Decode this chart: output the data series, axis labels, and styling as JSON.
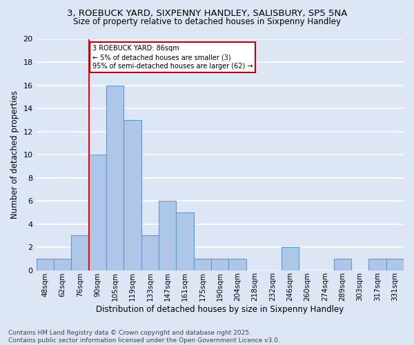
{
  "title1": "3, ROEBUCK YARD, SIXPENNY HANDLEY, SALISBURY, SP5 5NA",
  "title2": "Size of property relative to detached houses in Sixpenny Handley",
  "xlabel": "Distribution of detached houses by size in Sixpenny Handley",
  "ylabel": "Number of detached properties",
  "categories": [
    "48sqm",
    "62sqm",
    "76sqm",
    "90sqm",
    "105sqm",
    "119sqm",
    "133sqm",
    "147sqm",
    "161sqm",
    "175sqm",
    "190sqm",
    "204sqm",
    "218sqm",
    "232sqm",
    "246sqm",
    "260sqm",
    "274sqm",
    "289sqm",
    "303sqm",
    "317sqm",
    "331sqm"
  ],
  "values": [
    1,
    1,
    3,
    10,
    16,
    13,
    3,
    6,
    5,
    1,
    1,
    1,
    0,
    0,
    2,
    0,
    0,
    1,
    0,
    1,
    1
  ],
  "bar_color": "#aec6e8",
  "bar_edge_color": "#5b9bd5",
  "red_line_index": 2.5,
  "annotation_text": "3 ROEBUCK YARD: 86sqm\n← 5% of detached houses are smaller (3)\n95% of semi-detached houses are larger (62) →",
  "annotation_box_color": "#ffffff",
  "annotation_box_edge": "#cc0000",
  "footer": "Contains HM Land Registry data © Crown copyright and database right 2025.\nContains public sector information licensed under the Open Government Licence v3.0.",
  "ylim": [
    0,
    20
  ],
  "yticks": [
    0,
    2,
    4,
    6,
    8,
    10,
    12,
    14,
    16,
    18,
    20
  ],
  "background_color": "#dce6f5",
  "grid_color": "#ffffff",
  "title_fontsize": 9.5,
  "subtitle_fontsize": 8.5,
  "ylabel_fontsize": 8.5,
  "xlabel_fontsize": 8.5,
  "tick_fontsize": 7.5,
  "footer_fontsize": 6.5
}
